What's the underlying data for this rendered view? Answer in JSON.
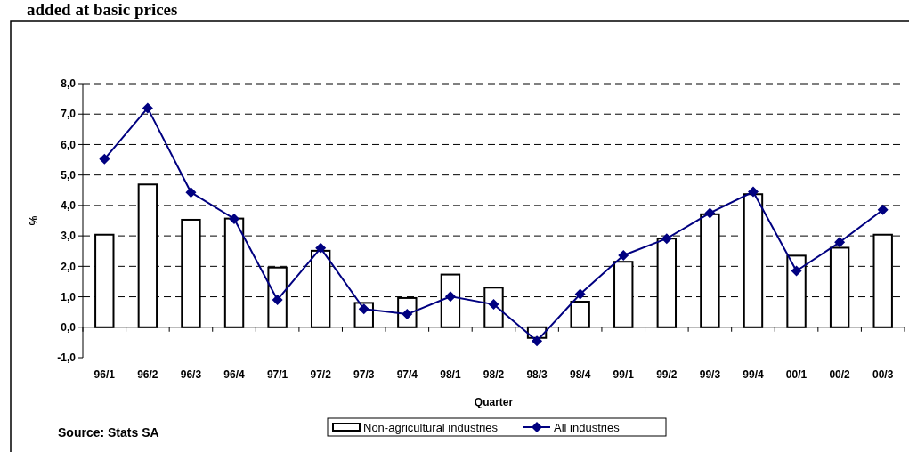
{
  "chart_data": {
    "type": "bar",
    "title": "added at basic prices",
    "xlabel": "Quarter",
    "ylabel": "%",
    "categories": [
      "96/1",
      "96/2",
      "96/3",
      "96/4",
      "97/1",
      "97/2",
      "97/3",
      "97/4",
      "98/1",
      "98/2",
      "98/3",
      "98/4",
      "99/1",
      "99/2",
      "99/3",
      "99/4",
      "00/1",
      "00/2",
      "00/3"
    ],
    "series": [
      {
        "name": "Non-agricultural industries",
        "color": "#ffffff",
        "values": [
          3.04,
          4.69,
          3.53,
          3.57,
          1.96,
          2.51,
          0.8,
          0.96,
          1.73,
          1.3,
          -0.35,
          0.84,
          2.15,
          2.91,
          3.71,
          4.37,
          2.35,
          2.61,
          3.04
        ]
      },
      {
        "name": "All industries",
        "type": "line",
        "color": "#000080",
        "values": [
          5.52,
          7.2,
          4.43,
          3.56,
          0.9,
          2.6,
          0.6,
          0.43,
          1.01,
          0.75,
          -0.45,
          1.09,
          2.36,
          2.91,
          3.75,
          4.45,
          1.85,
          2.79,
          3.86
        ]
      }
    ],
    "ylim": [
      -1,
      8
    ],
    "yticks": [
      {
        "value": -1,
        "label": "-1,0"
      },
      {
        "value": 0,
        "label": "0,0"
      },
      {
        "value": 1,
        "label": "1,0"
      },
      {
        "value": 2,
        "label": "2,0"
      },
      {
        "value": 3,
        "label": "3,0"
      },
      {
        "value": 4,
        "label": "4,0"
      },
      {
        "value": 5,
        "label": "5,0"
      },
      {
        "value": 6,
        "label": "6,0"
      },
      {
        "value": 7,
        "label": "7,0"
      },
      {
        "value": 8,
        "label": "8,0"
      }
    ],
    "grid": "y",
    "legend": "bottom",
    "marker": "diamond",
    "line_style": "solid",
    "annotations": [
      "Source: Stats SA"
    ]
  }
}
